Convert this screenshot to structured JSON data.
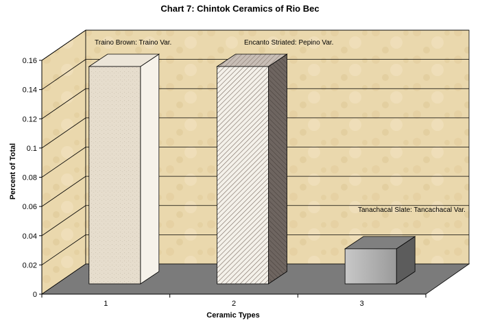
{
  "chart_data": {
    "type": "bar",
    "title": "Chart 7: Chintok Ceramics of Rio Bec",
    "xlabel": "Ceramic Types",
    "ylabel": "Percent of Total",
    "categories": [
      "1",
      "2",
      "3"
    ],
    "values": [
      0.155,
      0.155,
      0.025
    ],
    "ylim": [
      0,
      0.16
    ],
    "yticks": [
      "0",
      "0.02",
      "0.04",
      "0.06",
      "0.08",
      "0.1",
      "0.12",
      "0.14",
      "0.16"
    ],
    "annotations": [
      "Traino Brown: Traino Var.",
      "Encanto Striated: Pepino Var.",
      "Tanachacal Slate: Tancachacal Var."
    ],
    "grid": true,
    "style": "3d",
    "colors": {
      "wall": "#e8d6a8",
      "floor": "#7a7a7a",
      "bar1": "#e4dccc",
      "bar2": "#f0ece4",
      "bar3": "#b0b0b0"
    }
  }
}
